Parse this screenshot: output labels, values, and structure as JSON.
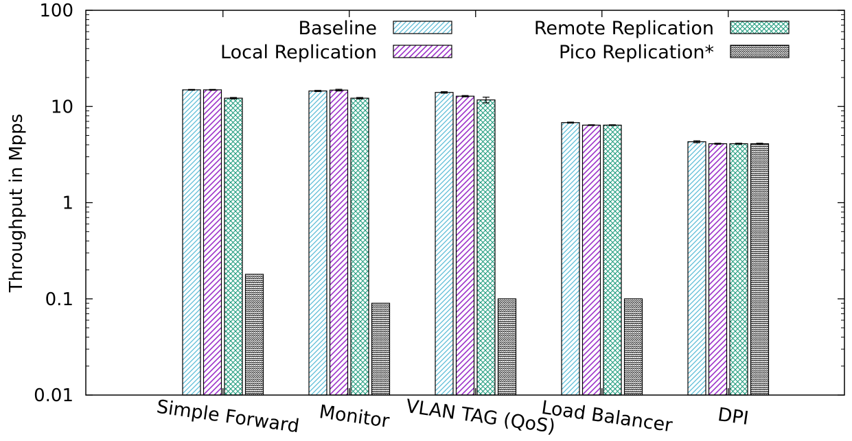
{
  "chart_data": {
    "type": "bar",
    "title": "",
    "xlabel": "",
    "ylabel": "Throughput in Mpps",
    "yscale": "log",
    "ylim": [
      0.01,
      100
    ],
    "yticks": [
      "0.01",
      "0.1",
      "1",
      "10",
      "100"
    ],
    "legend_position": "top",
    "grid": false,
    "categories": [
      "Simple Forward",
      "Monitor",
      "VLAN TAG (QoS)",
      "Load Balancer",
      "DPI"
    ],
    "series": [
      {
        "name": "Baseline",
        "color": "#5bbcd6",
        "pattern": "diagonal-hatch",
        "values": [
          14.9,
          14.5,
          14.0,
          6.8,
          4.3
        ]
      },
      {
        "name": "Local Replication",
        "color": "#9b30c8",
        "pattern": "diagonal-hatch",
        "values": [
          14.9,
          14.8,
          12.8,
          6.4,
          4.1
        ]
      },
      {
        "name": "Remote  Replication",
        "color": "#1a9a7a",
        "pattern": "crosshatch",
        "values": [
          12.2,
          12.2,
          11.7,
          6.4,
          4.1
        ]
      },
      {
        "name": "Pico Replication*",
        "color": "#000000",
        "pattern": "zigzag",
        "values": [
          0.18,
          0.09,
          0.1,
          0.1,
          4.1
        ]
      }
    ],
    "error_bars": [
      [
        0.15,
        0.2,
        0.25,
        0.08,
        0.1
      ],
      [
        0.15,
        0.3,
        0.2,
        0.06,
        0.05
      ],
      [
        0.2,
        0.2,
        0.8,
        0.06,
        0.05
      ],
      [
        0,
        0,
        0,
        0,
        0.05
      ]
    ]
  }
}
